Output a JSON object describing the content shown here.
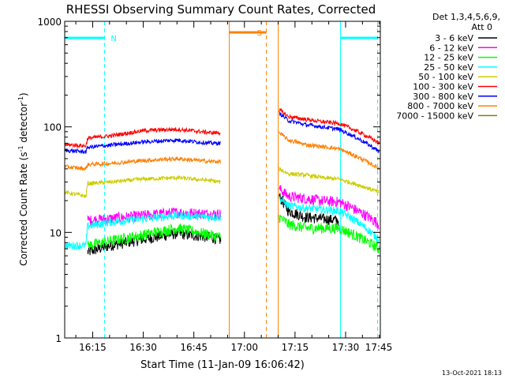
{
  "chart_data": {
    "type": "line",
    "title": "RHESSI Observing Summary Count Rates, Corrected",
    "xlabel": "Start Time (11-Jan-09 16:06:42)",
    "ylabel_main": "Corrected Count Rate (s",
    "ylabel_sup1": "-1",
    "ylabel_mid": " detector",
    "ylabel_sup2": "-1",
    "ylabel_end": ")",
    "yscale": "log",
    "ylim": [
      1,
      1000
    ],
    "xlim_minutes": [
      6.7,
      100.3
    ],
    "x_ticks": [
      {
        "label": "16:15",
        "minute": 15
      },
      {
        "label": "16:30",
        "minute": 30
      },
      {
        "label": "16:45",
        "minute": 45
      },
      {
        "label": "17:00",
        "minute": 60
      },
      {
        "label": "17:15",
        "minute": 75
      },
      {
        "label": "17:30",
        "minute": 90
      },
      {
        "label": "17:45",
        "minute": 105
      }
    ],
    "y_ticks": [
      {
        "label": "1",
        "value": 1
      },
      {
        "label": "10",
        "value": 10
      },
      {
        "label": "100",
        "value": 100
      },
      {
        "label": "1000",
        "value": 1000
      }
    ],
    "legend": {
      "header1": "Det 1,3,4,5,6,9,",
      "header2": "Att 0",
      "placement": "right"
    },
    "footer": "13-Oct-2021 18:13",
    "grid": false,
    "series": [
      {
        "name": "3 - 6 keV",
        "color": "#000000",
        "segments": [
          {
            "x": [
              13.5,
              20,
              30,
              40,
              50,
              53
            ],
            "y": [
              6.5,
              7.5,
              8.6,
              9.8,
              9.0,
              8.5
            ]
          },
          {
            "x": [
              70.3,
              73,
              78,
              83,
              88
            ],
            "y": [
              22,
              16,
              14,
              13.5,
              13
            ]
          }
        ]
      },
      {
        "name": "6 - 12 keV",
        "color": "#ff00ff",
        "segments": [
          {
            "x": [
              13.5,
              20,
              30,
              40,
              50,
              53
            ],
            "y": [
              13,
              13.5,
              14.5,
              15.5,
              15,
              15
            ]
          },
          {
            "x": [
              70.3,
              73,
              78,
              83,
              88,
              100
            ],
            "y": [
              26,
              22,
              21,
              20,
              19.5,
              12
            ]
          }
        ]
      },
      {
        "name": "12 - 25 keV",
        "color": "#00ff00",
        "segments": [
          {
            "x": [
              13.5,
              20,
              30,
              40,
              50,
              53
            ],
            "y": [
              7.5,
              8.3,
              9.5,
              11,
              9.5,
              9.0
            ]
          },
          {
            "x": [
              70.3,
              73,
              78,
              83,
              88,
              100
            ],
            "y": [
              14,
              12,
              11,
              11,
              11,
              7
            ]
          }
        ]
      },
      {
        "name": "25 - 50 keV",
        "color": "#00ffff",
        "segments": [
          {
            "x": [
              6.7,
              13,
              13.5,
              20,
              30,
              40,
              50,
              53
            ],
            "y": [
              7.5,
              7.5,
              11.5,
              12.5,
              13.5,
              14.5,
              14,
              14
            ]
          },
          {
            "x": [
              70.3,
              73,
              78,
              83,
              88,
              100
            ],
            "y": [
              21,
              18,
              17,
              16.5,
              16,
              8.5
            ]
          }
        ]
      },
      {
        "name": "50 - 100 keV",
        "color": "#cccc00",
        "segments": [
          {
            "x": [
              6.7,
              13,
              13.5,
              20,
              30,
              40,
              50,
              53
            ],
            "y": [
              24,
              22,
              29,
              30,
              32,
              33,
              31,
              30
            ]
          },
          {
            "x": [
              70.3,
              73,
              78,
              83,
              88,
              100
            ],
            "y": [
              40,
              36,
              35,
              33,
              32,
              24
            ]
          }
        ]
      },
      {
        "name": "100 - 300 keV",
        "color": "#ff0000",
        "segments": [
          {
            "x": [
              6.7,
              13,
              13.5,
              20,
              30,
              40,
              50,
              53
            ],
            "y": [
              68,
              66,
              78,
              82,
              92,
              95,
              88,
              88
            ]
          },
          {
            "x": [
              70.3,
              73,
              78,
              83,
              88,
              100
            ],
            "y": [
              145,
              125,
              118,
              112,
              108,
              70
            ]
          }
        ]
      },
      {
        "name": "300 - 800 keV",
        "color": "#0000ff",
        "segments": [
          {
            "x": [
              6.7,
              13,
              13.5,
              20,
              30,
              40,
              50,
              53
            ],
            "y": [
              60,
              58,
              64,
              67,
              72,
              75,
              70,
              70
            ]
          },
          {
            "x": [
              70.3,
              73,
              78,
              83,
              88,
              100
            ],
            "y": [
              135,
              115,
              105,
              100,
              95,
              58
            ]
          }
        ]
      },
      {
        "name": "800 - 7000 keV",
        "color": "#ff8000",
        "segments": [
          {
            "x": [
              6.7,
              13,
              13.5,
              20,
              30,
              40,
              50,
              53
            ],
            "y": [
              42,
              40,
              44,
              45,
              48,
              50,
              47,
              47
            ]
          },
          {
            "x": [
              70.3,
              73,
              78,
              83,
              88,
              100
            ],
            "y": [
              88,
              75,
              68,
              65,
              62,
              40
            ]
          }
        ]
      },
      {
        "name": "7000 - 15000 keV",
        "color": "#808000",
        "segments": []
      }
    ],
    "events": [
      {
        "label": "N",
        "color": "#00ffff",
        "bar_start": 6.7,
        "bar_end": 18.5,
        "lines": [
          18.5
        ]
      },
      {
        "label": "S",
        "color": "#ff8000",
        "bar_start": 55.5,
        "bar_end": 66.5,
        "lines": [
          66.5
        ]
      },
      {
        "label": "",
        "color": "#00ffff",
        "bar_start": 88.5,
        "bar_end": 99.5,
        "lines": [
          99.5
        ]
      }
    ],
    "solid_verticals": [
      {
        "color": "#00ffff",
        "minute": 88.5
      },
      {
        "color": "#ff8000",
        "minute": 55.5
      },
      {
        "color": "#ff8000",
        "minute": 70.0
      }
    ]
  }
}
